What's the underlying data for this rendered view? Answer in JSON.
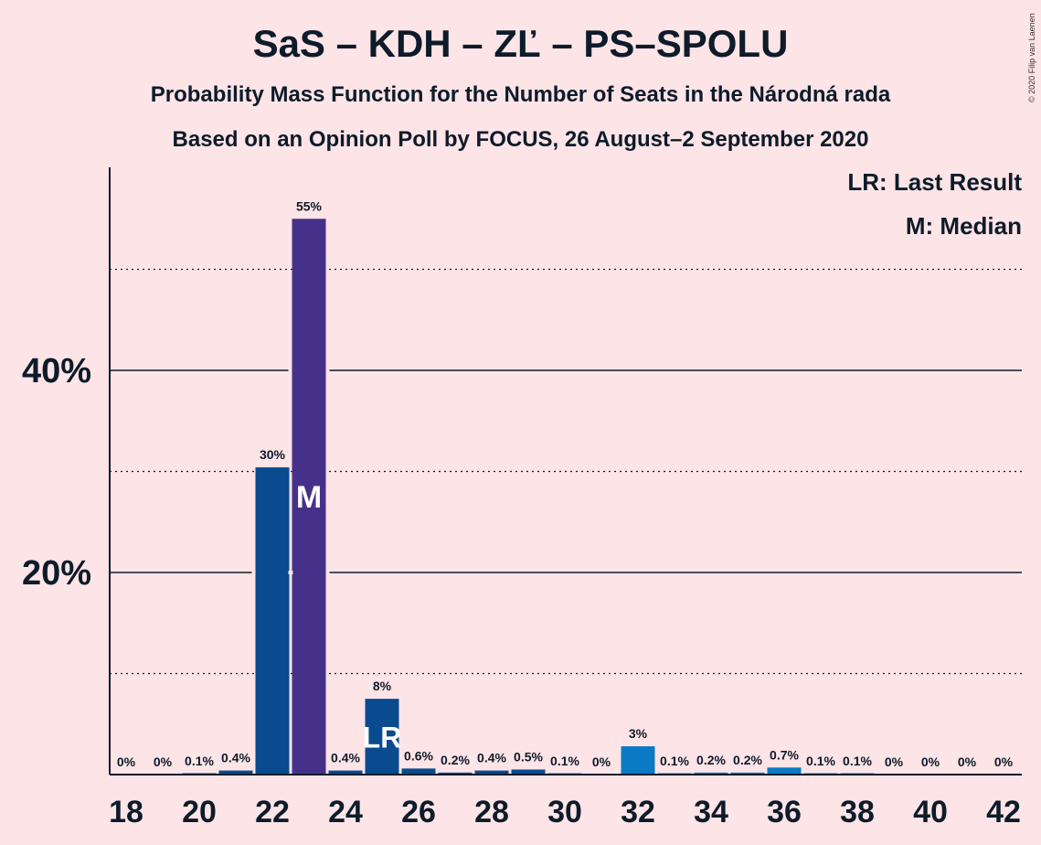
{
  "title": "SaS – KDH – ZĽ – PS–SPOLU",
  "subtitle": "Probability Mass Function for the Number of Seats in the Národná rada",
  "subtitle2": "Based on an Opinion Poll by FOCUS, 26 August–2 September 2020",
  "copyright": "© 2020 Filip van Laenen",
  "legend": {
    "last_result": "LR: Last Result",
    "median": "M: Median"
  },
  "colors": {
    "background": "#fde4e6",
    "bar": "#0a4a8f",
    "bar_light": "#0b7ac4",
    "median_bar": "#46318a"
  },
  "chart_data": {
    "type": "bar",
    "x": [
      18,
      19,
      20,
      21,
      22,
      23,
      24,
      25,
      26,
      27,
      28,
      29,
      30,
      31,
      32,
      33,
      34,
      35,
      36,
      37,
      38,
      39,
      40,
      41,
      42
    ],
    "values": [
      0,
      0,
      0.1,
      0.4,
      30.4,
      55,
      0.4,
      7.5,
      0.6,
      0.2,
      0.4,
      0.5,
      0.1,
      0,
      2.8,
      0.1,
      0.2,
      0.2,
      0.7,
      0.1,
      0.1,
      0,
      0,
      0,
      0
    ],
    "data_labels": [
      "0%",
      "0%",
      "0.1%",
      "0.4%",
      "30%",
      "55%",
      "0.4%",
      "8%",
      "0.6%",
      "0.2%",
      "0.4%",
      "0.5%",
      "0.1%",
      "0%",
      "3%",
      "0.1%",
      "0.2%",
      "0.2%",
      "0.7%",
      "0.1%",
      "0.1%",
      "0%",
      "0%",
      "0%",
      "0%"
    ],
    "x_ticks": [
      "18",
      "20",
      "22",
      "24",
      "26",
      "28",
      "30",
      "32",
      "34",
      "36",
      "38",
      "40",
      "42"
    ],
    "y_ticks": [
      "20%",
      "40%"
    ],
    "ylim": [
      0,
      60
    ],
    "median": 23,
    "median_marker": "M",
    "last_result": 25,
    "last_result_marker": "LR",
    "grid": {
      "solid": [
        20,
        40
      ],
      "dotted": [
        10,
        30,
        50
      ]
    }
  }
}
